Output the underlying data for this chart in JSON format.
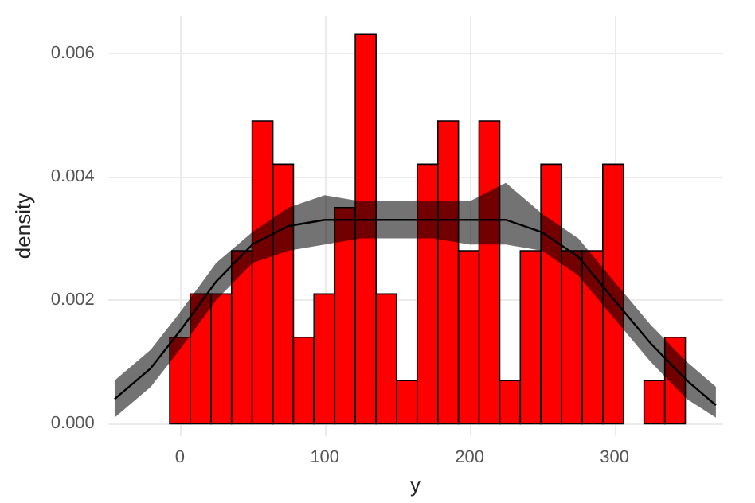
{
  "chart_data": {
    "type": "histogram",
    "xlabel": "y",
    "ylabel": "density",
    "bins": [
      -7,
      7.2,
      21.5,
      35.7,
      49.9,
      64.2,
      78.4,
      92.6,
      106.9,
      121.1,
      135.4,
      149.6,
      163.8,
      178.1,
      192.3,
      206.5,
      220.8,
      235,
      249.2,
      263.5,
      277.7,
      291.9,
      306.2,
      320.4,
      334.7,
      348.9
    ],
    "values": [
      0.0014,
      0.0021,
      0.0021,
      0.0028,
      0.0049,
      0.0042,
      0.0014,
      0.0021,
      0.0035,
      0.0063,
      0.0021,
      0.0007,
      0.0042,
      0.0049,
      0.0028,
      0.0049,
      0.0007,
      0.0028,
      0.0042,
      0.0028,
      0.0028,
      0.0042,
      0,
      0.0007,
      0.0014
    ],
    "color": "#ff0000",
    "series": [
      {
        "type": "line",
        "color": "#000000",
        "x": [
          -45,
          -20,
          0,
          25,
          50,
          75,
          100,
          125,
          150,
          175,
          200,
          225,
          250,
          275,
          300,
          325,
          350,
          370
        ],
        "values": [
          0.0004,
          0.0009,
          0.0015,
          0.0023,
          0.0029,
          0.0032,
          0.0033,
          0.0033,
          0.0033,
          0.0033,
          0.0033,
          0.0033,
          0.0031,
          0.0027,
          0.002,
          0.0013,
          0.0007,
          0.0003
        ],
        "lower": [
          0.0001,
          0.0006,
          0.0012,
          0.002,
          0.0026,
          0.0028,
          0.0029,
          0.003,
          0.003,
          0.003,
          0.0029,
          0.0029,
          0.0028,
          0.0024,
          0.0017,
          0.001,
          0.0004,
          0.0001
        ],
        "upper": [
          0.0007,
          0.0012,
          0.0018,
          0.0026,
          0.0031,
          0.0035,
          0.0037,
          0.0036,
          0.0036,
          0.0036,
          0.0036,
          0.0039,
          0.0034,
          0.003,
          0.0023,
          0.0016,
          0.001,
          0.0006
        ]
      }
    ],
    "xlim": [
      -50,
      375
    ],
    "xticks": [
      0,
      100,
      200,
      300
    ],
    "ylim": [
      -0.0002,
      0.0066
    ],
    "yticks": [
      {
        "value": 0,
        "label": "0.000"
      },
      {
        "value": 0.002,
        "label": "0.002"
      },
      {
        "value": 0.004,
        "label": "0.004"
      },
      {
        "value": 0.006,
        "label": "0.006"
      }
    ],
    "grid": true,
    "marker": "none",
    "line_style": "solid"
  }
}
